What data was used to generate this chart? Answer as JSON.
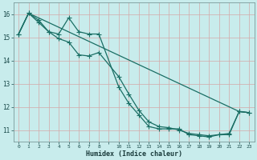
{
  "xlabel": "Humidex (Indice chaleur)",
  "bg_color": "#c8ecec",
  "line_color": "#1a6e64",
  "grid_color": "#d4a8a8",
  "xlim": [
    -0.5,
    23.5
  ],
  "ylim": [
    10.5,
    16.5
  ],
  "yticks": [
    11,
    12,
    13,
    14,
    15,
    16
  ],
  "xticks": [
    0,
    1,
    2,
    3,
    4,
    5,
    6,
    7,
    8,
    10,
    11,
    12,
    13,
    14,
    15,
    16,
    17,
    18,
    19,
    20,
    21,
    22,
    23
  ],
  "line1_x": [
    0,
    1,
    2,
    3,
    4,
    5,
    6,
    7,
    8,
    10,
    11,
    12,
    13,
    14,
    15,
    16,
    17,
    18,
    19,
    20,
    21,
    22,
    23
  ],
  "line1_y": [
    15.15,
    16.05,
    15.75,
    15.25,
    15.15,
    15.85,
    15.25,
    15.15,
    15.15,
    12.85,
    12.15,
    11.65,
    11.15,
    11.05,
    11.05,
    11.05,
    10.8,
    10.75,
    10.7,
    10.8,
    10.8,
    11.8,
    11.75
  ],
  "line2_x": [
    0,
    1,
    2,
    3,
    4,
    5,
    6,
    7,
    8,
    10,
    11,
    12,
    13,
    14,
    15,
    16,
    17,
    18,
    19,
    20,
    21,
    22,
    23
  ],
  "line2_y": [
    15.15,
    16.05,
    15.65,
    15.25,
    14.95,
    14.8,
    14.25,
    14.2,
    14.35,
    13.3,
    12.55,
    11.85,
    11.35,
    11.15,
    11.1,
    11.0,
    10.85,
    10.8,
    10.75,
    10.8,
    10.85,
    11.8,
    11.75
  ],
  "line3_x": [
    0,
    1,
    22,
    23
  ],
  "line3_y": [
    15.15,
    16.05,
    11.8,
    11.75
  ],
  "markersize": 3.0,
  "linewidth": 0.9
}
